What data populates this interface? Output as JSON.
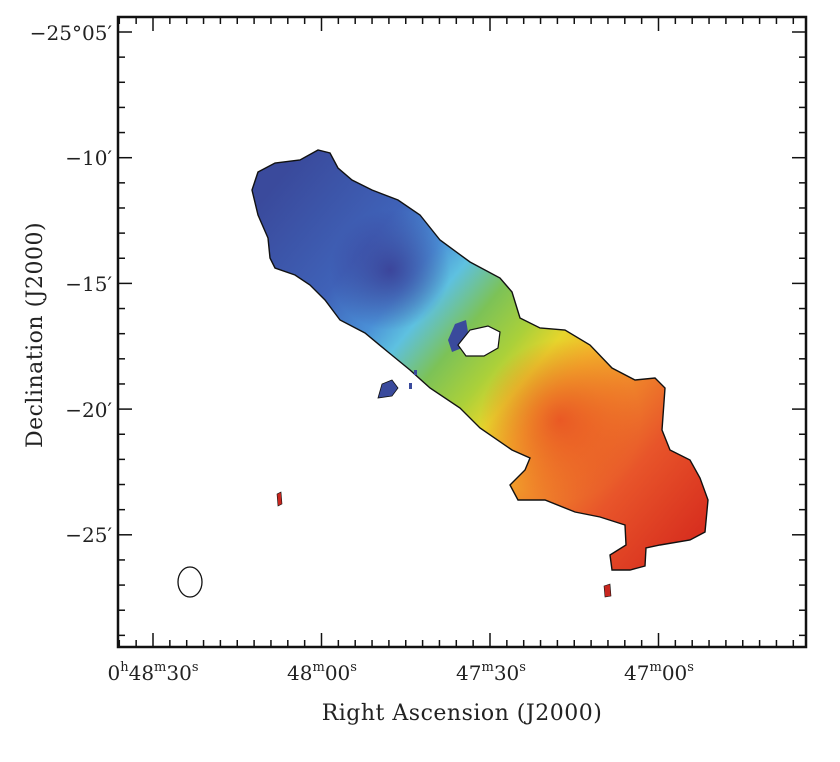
{
  "chart_data": {
    "type": "heatmap",
    "title": "",
    "xlabel": "Right Ascension (J2000)",
    "ylabel": "Declination (J2000)",
    "x_ticks": [
      {
        "h": "0",
        "m": "48",
        "s": "30"
      },
      {
        "h": "",
        "m": "48",
        "s": "00"
      },
      {
        "h": "",
        "m": "47",
        "s": "30"
      },
      {
        "h": "",
        "m": "47",
        "s": "00"
      }
    ],
    "y_ticks": [
      "−25°05′",
      "−10′",
      "−15′",
      "−20′",
      "−25′"
    ],
    "colormap": [
      "#3a4a9c",
      "#3f7fd0",
      "#5ec1e0",
      "#7cc257",
      "#c6d92e",
      "#f2c22a",
      "#f08a2a",
      "#e8402a",
      "#c8261f"
    ],
    "gradient_direction": "north-east (blue) to south-west (red)",
    "beam_ellipse": true,
    "grid": false
  }
}
